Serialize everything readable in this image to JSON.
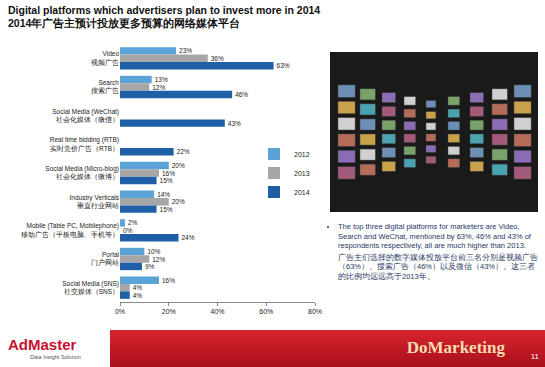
{
  "chart_data": {
    "type": "bar",
    "title": "Digital platforms which advertisers plan to invest more in 2014\n2014年广告主预计投放更多预算的网络媒体平台",
    "orientation": "horizontal",
    "categories": [
      "Video\n视频广告",
      "Search\n搜索广告",
      "Social Media (WeChat)\n社会化媒体（微信）",
      "Real time bidding (RTB)\n实时竞价广告（RTB）",
      "Social Media (Micro-blog)\n社会化媒体（微博）",
      "Industry Verticals\n垂直行业网站",
      "Mobile (Table PC, Mobilephone)\n移动广告（平板电脑、手机等）",
      "Portal\n门户网站",
      "Social Media (SNS)\n社交媒体（SNS）"
    ],
    "series": [
      {
        "name": "2012",
        "color": "#5ba3d6",
        "values": [
          23,
          13,
          null,
          null,
          20,
          14,
          2,
          10,
          16
        ],
        "value_labels": [
          "23%",
          "13%",
          null,
          null,
          "20%",
          "14%",
          "2%",
          "10%",
          "16%"
        ]
      },
      {
        "name": "2013",
        "color": "#a6a6a6",
        "values": [
          36,
          12,
          null,
          null,
          16,
          20,
          0,
          12,
          4
        ],
        "value_labels": [
          "36%",
          "12%",
          null,
          null,
          "16%",
          "20%",
          "0%",
          "12%",
          "4%"
        ]
      },
      {
        "name": "2014",
        "color": "#1f5fa8",
        "values": [
          63,
          46,
          43,
          22,
          15,
          15,
          24,
          9,
          4
        ],
        "value_labels": [
          "63%",
          "46%",
          "43%",
          "22%",
          "15%",
          "15%",
          "24%",
          "9%",
          "4%"
        ]
      }
    ],
    "xlim": [
      0,
      80
    ],
    "xticks": [
      {
        "value": 0,
        "label": "0%"
      },
      {
        "value": 20,
        "label": "20%"
      },
      {
        "value": 40,
        "label": "40%"
      },
      {
        "value": 60,
        "label": "60%"
      },
      {
        "value": 80,
        "label": "80%"
      }
    ],
    "grid": false,
    "legend": "right",
    "data_labels": true
  },
  "text_box": {
    "paragraphs": [
      "The top three digital platforms for marketers are Video, Search and WeChat, mentioned by 63%, 46% and 43% of respondents respectively, all are much higher than 2013.",
      "广告主们选择的数字媒体投放平台前三名分别是视频广告（63%）、搜索广告（46%）以及微信（43%）。这三者的比例均远远高于2013年。"
    ]
  },
  "footer": {
    "logo": "AdMaster",
    "tagline": "Data Insight Solution",
    "watermark": "DoMarketing",
    "page": "11"
  }
}
